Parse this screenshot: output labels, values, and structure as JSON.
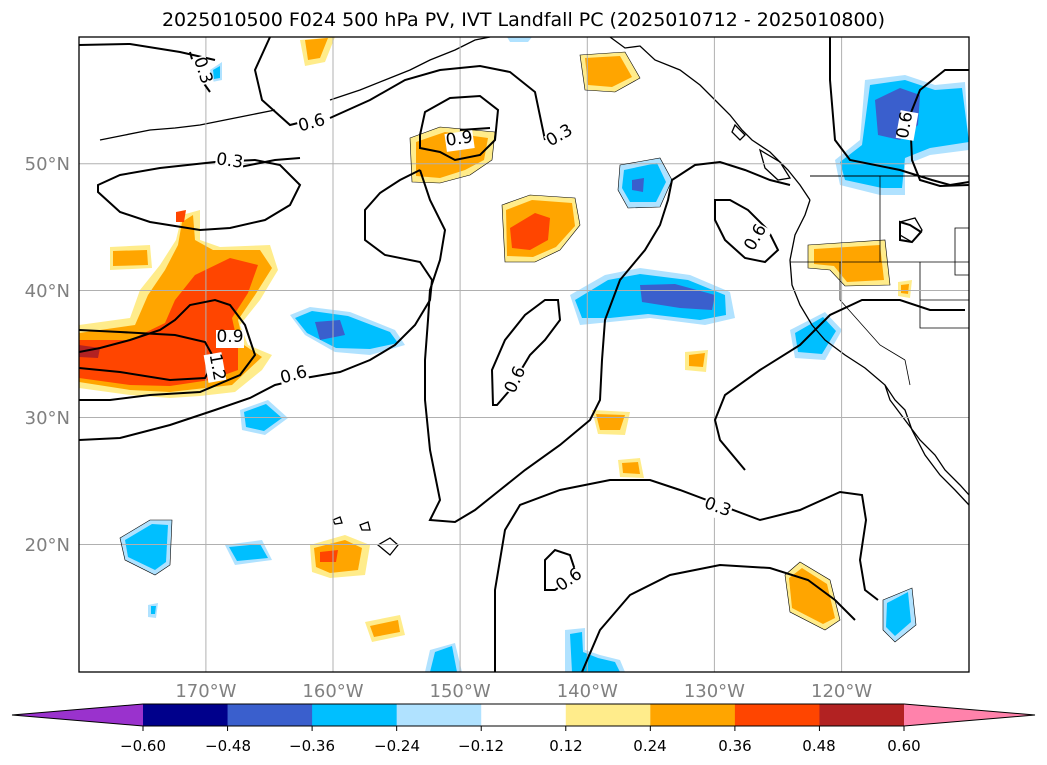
{
  "title": "2025010500 F024 500 hPa PV, IVT Landfall PC (2025010712 - 2025010800)",
  "map": {
    "projection": "cylindrical lat-lon",
    "lon_range": [
      -180,
      -110
    ],
    "lat_range": [
      10,
      60
    ],
    "gridlines": true,
    "lat_tick_labels": [
      "50°N",
      "40°N",
      "30°N",
      "20°N"
    ],
    "lon_tick_labels": [
      "170°W",
      "160°W",
      "150°W",
      "140°W",
      "130°W",
      "120°W"
    ],
    "contour_labels": [
      "0.3",
      "0.6",
      "0.3",
      "0.6",
      "0.9",
      "0.3",
      "0.6",
      "0.9",
      "1.2",
      "0.6",
      "0.6",
      "0.6",
      "0.3",
      "0.6",
      "0.6",
      "0.3",
      "0.6"
    ]
  },
  "colorbar": {
    "extend": "both",
    "tick_labels": [
      "−0.60",
      "−0.48",
      "−0.36",
      "−0.24",
      "−0.12",
      "0.12",
      "0.24",
      "0.36",
      "0.48",
      "0.60"
    ],
    "colors": {
      "under": "#9a32cd",
      "bins": [
        "#00008b",
        "#3a5fcd",
        "#00bfff",
        "#b0e2ff",
        "#ffffff",
        "#ffec8b",
        "#ffa500",
        "#ff4500",
        "#b22222"
      ],
      "over": "#ff82ab"
    }
  }
}
